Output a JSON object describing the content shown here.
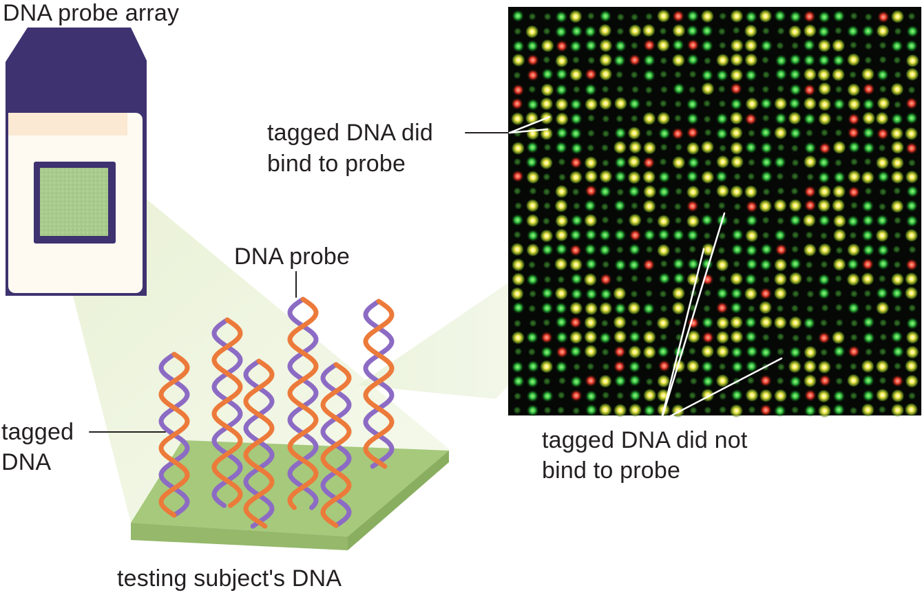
{
  "labels": {
    "title": "DNA probe array",
    "tagged_bind_line1": "tagged DNA did",
    "tagged_bind_line2": "bind to probe",
    "dna_probe": "DNA probe",
    "tagged_dna_line1": "tagged",
    "tagged_dna_line2": "DNA",
    "not_bind_line1": "tagged DNA did not",
    "not_bind_line2": "bind to probe",
    "caption": "testing subject's DNA"
  },
  "colors": {
    "slide_label": "#3e3270",
    "slide_body": "#fefaf1",
    "slide_band": "#fbe9d3",
    "chip_green": "#a7c98a",
    "base_plate": "#a6c97c",
    "helix_purple": "#8c6bc4",
    "helix_orange": "#ec7a3a",
    "spot_green": "#2fb83a",
    "spot_yellow": "#f2e94a",
    "spot_red": "#e83a2a"
  }
}
